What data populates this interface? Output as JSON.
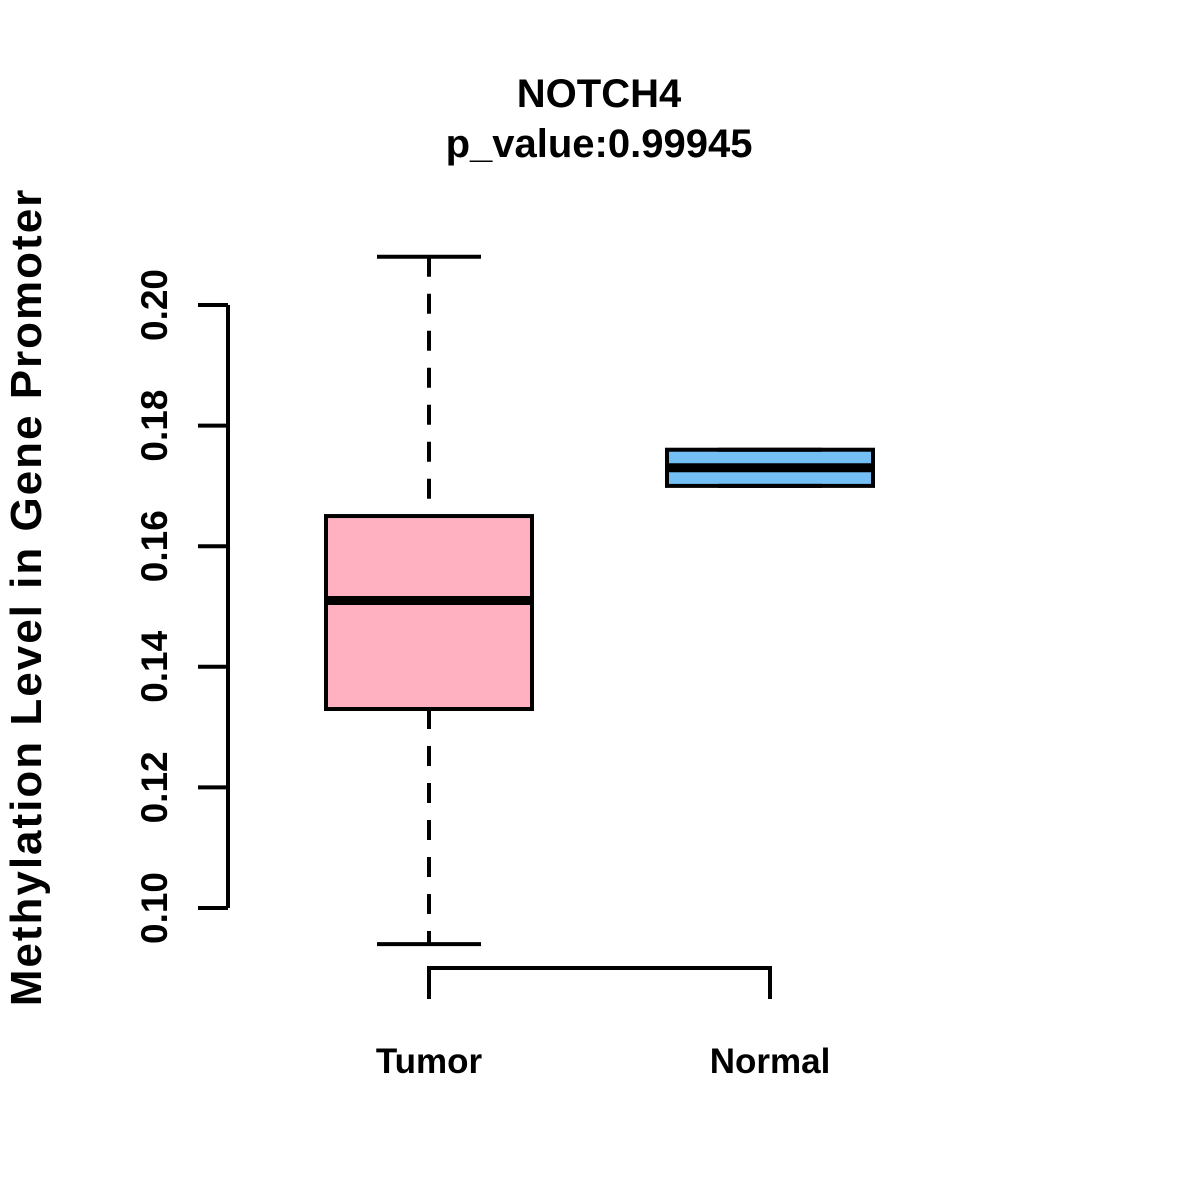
{
  "figure": {
    "background": "#FFFFFF",
    "line_color": "#000000"
  },
  "chart_data": {
    "type": "boxplot",
    "title": "NOTCH4",
    "subtitle": "p_value:0.99945",
    "ylabel": "Methylation Level in Gene Promoter",
    "xlabel": "",
    "categories": [
      "Tumor",
      "Normal"
    ],
    "y_tick_values": [
      0.1,
      0.12,
      0.14,
      0.16,
      0.18,
      0.2
    ],
    "y_tick_labels": [
      "0.10",
      "0.12",
      "0.14",
      "0.16",
      "0.18",
      "0.20"
    ],
    "ylim": [
      0.1,
      0.2
    ],
    "grid": false,
    "legend": "none",
    "series": [
      {
        "name": "Tumor",
        "fill": "#FFB1C1",
        "whisker_low": 0.094,
        "q1": 0.133,
        "median": 0.151,
        "q3": 0.165,
        "whisker_high": 0.208
      },
      {
        "name": "Normal",
        "fill": "#74BFF4",
        "whisker_low": 0.17,
        "q1": 0.17,
        "median": 0.173,
        "q3": 0.176,
        "whisker_high": 0.176
      }
    ]
  }
}
